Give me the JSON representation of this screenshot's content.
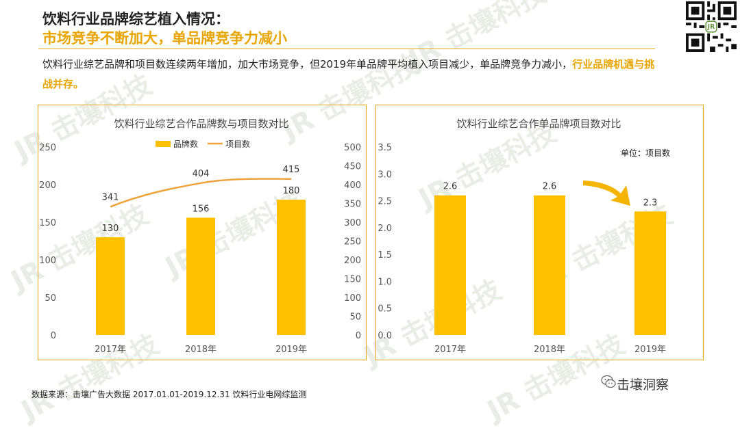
{
  "header": {
    "title_line1": "饮料行业品牌综艺植入情况：",
    "title_line2": "市场竞争不断加大，单品牌竞争力减小"
  },
  "description": {
    "text": "饮料行业综艺品牌和项目数连续两年增加，加大市场竞争，但2019年单品牌平均植入项目减少，单品牌竞争力减小，",
    "highlight": "行业品牌机遇与挑战并存。"
  },
  "footer": {
    "source": "数据来源：击壤广告大数据 2017.01.01-2019.12.31  饮料行业电网综监测",
    "brand": "击壤洞察"
  },
  "watermark": {
    "text": "击壤科技"
  },
  "colors": {
    "accent": "#e8a500",
    "bar": "#ffc000",
    "line": "#eda33a"
  },
  "chart_data": [
    {
      "type": "bar",
      "title": "饮料行业综艺合作品牌数与项目数对比",
      "categories": [
        "2017年",
        "2018年",
        "2019年"
      ],
      "series": [
        {
          "name": "品牌数",
          "type": "bar",
          "axis": "left",
          "values": [
            130,
            156,
            180
          ]
        },
        {
          "name": "项目数",
          "type": "line",
          "axis": "right",
          "values": [
            341,
            404,
            415
          ]
        }
      ],
      "ylim_left": [
        0,
        250
      ],
      "yticks_left": [
        "0",
        "50",
        "100",
        "150",
        "200",
        "250"
      ],
      "ylim_right": [
        0,
        500
      ],
      "yticks_right": [
        "0",
        "50",
        "100",
        "150",
        "200",
        "250",
        "300",
        "350",
        "400",
        "450",
        "500"
      ],
      "legend": "top-center",
      "grid": false
    },
    {
      "type": "bar",
      "title": "饮料行业综艺合作单品牌项目数对比",
      "unit_label": "单位：项目数",
      "categories": [
        "2017年",
        "2018年",
        "2019年"
      ],
      "series": [
        {
          "values": [
            2.6,
            2.6,
            2.3
          ],
          "labels": [
            "2.6",
            "2.6",
            "2.3"
          ]
        }
      ],
      "ylim": [
        0,
        3.5
      ],
      "yticks": [
        "0.0",
        "0.5",
        "1.0",
        "1.5",
        "2.0",
        "2.5",
        "3.0",
        "3.5"
      ],
      "grid": false
    }
  ]
}
